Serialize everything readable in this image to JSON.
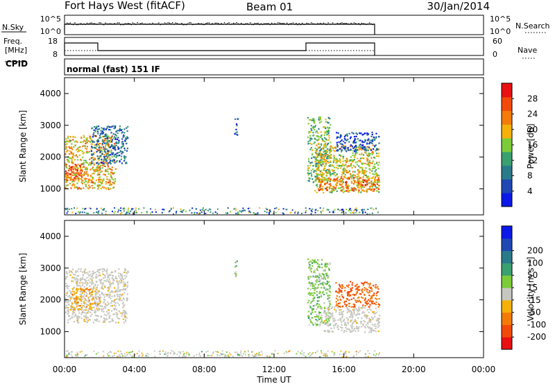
{
  "header": {
    "station": "Fort Hays West (fitACF)",
    "beam": "Beam 01",
    "date": "30/Jan/2014"
  },
  "top_panels": {
    "nsky_label": "N.Sky",
    "nsky_ticks_left": [
      "10^5",
      "10^0"
    ],
    "nsearch_ticks_right": [
      "10^5",
      "10^0"
    ],
    "nsearch_label": "N.Search",
    "freq_label": "Freq.",
    "freq_unit": "[MHz]",
    "freq_ticks": [
      "18",
      "8"
    ],
    "nave_ticks": [
      "60",
      "0"
    ],
    "nave_label": "Nave",
    "cpid_label": "CPID",
    "cpid_value": "normal (fast) 151 IF"
  },
  "colors": {
    "power_scale": [
      "#0b18e8",
      "#1f48b4",
      "#2a7b8a",
      "#3aa070",
      "#7ccc3a",
      "#f3b10a",
      "#f37b0a",
      "#f24a0a",
      "#e81010"
    ],
    "velocity_scale": [
      "#e81010",
      "#f24a0a",
      "#f37b0a",
      "#f3b10a",
      "#c7c7c2",
      "#7ccc3a",
      "#3aa070",
      "#2a7b8a",
      "#1f48b4",
      "#0b18e8"
    ],
    "ground_scatter": "#c7c7c2"
  },
  "chart_data": [
    {
      "type": "heatmap",
      "name": "power",
      "ylabel": "Slant Range [km]",
      "yticks": [
        "1000",
        "2000",
        "3000",
        "4000"
      ],
      "ylim": [
        180,
        4500
      ],
      "xlim": [
        0,
        24
      ],
      "colorbar_label": "Power [dB]",
      "colorbar_ticks": [
        "4",
        "8",
        "12",
        "16",
        "20",
        "24",
        "28"
      ],
      "colorbar_range": [
        0,
        32
      ],
      "regions": [
        {
          "t0": 0.0,
          "t1": 2.9,
          "r0": 1000,
          "r1": 2700,
          "value": 20
        },
        {
          "t0": 0.0,
          "t1": 1.0,
          "r0": 1300,
          "r1": 1800,
          "value": 26
        },
        {
          "t0": 1.5,
          "t1": 3.6,
          "r0": 1800,
          "r1": 3000,
          "value": 8
        },
        {
          "t0": 9.7,
          "t1": 9.9,
          "r0": 2700,
          "r1": 3250,
          "value": 6
        },
        {
          "t0": 13.9,
          "t1": 15.2,
          "r0": 1200,
          "r1": 3300,
          "value": 14
        },
        {
          "t0": 14.3,
          "t1": 18.0,
          "r0": 900,
          "r1": 2400,
          "value": 18
        },
        {
          "t0": 14.5,
          "t1": 18.0,
          "r0": 950,
          "r1": 1400,
          "value": 24
        },
        {
          "t0": 15.5,
          "t1": 18.0,
          "r0": 2200,
          "r1": 2800,
          "value": 6
        }
      ]
    },
    {
      "type": "heatmap",
      "name": "velocity",
      "ylabel": "Slant Range [km]",
      "yticks": [
        "1000",
        "2000",
        "3000",
        "4000"
      ],
      "ylim": [
        180,
        4500
      ],
      "xlim": [
        0,
        24
      ],
      "xticks": [
        "00:00",
        "04:00",
        "08:00",
        "12:00",
        "16:00",
        "20:00",
        "00:00"
      ],
      "xlabel": "Time UT",
      "colorbar_label": "Velocity [m s⁻¹]",
      "colorbar_ticks": [
        "-200",
        "-100",
        "-50",
        "-15",
        "15",
        "50",
        "100",
        "200"
      ],
      "regions": [
        {
          "t0": 0.0,
          "t1": 3.6,
          "r0": 1300,
          "r1": 3000,
          "value": "ground"
        },
        {
          "t0": 0.3,
          "t1": 2.0,
          "r0": 1700,
          "r1": 2400,
          "value": -30
        },
        {
          "t0": 9.7,
          "t1": 9.9,
          "r0": 2700,
          "r1": 3250,
          "value": 30
        },
        {
          "t0": 13.9,
          "t1": 15.2,
          "r0": 1200,
          "r1": 3300,
          "value": 30
        },
        {
          "t0": 14.8,
          "t1": 18.0,
          "r0": 1000,
          "r1": 1800,
          "value": "ground"
        },
        {
          "t0": 15.5,
          "t1": 18.0,
          "r0": 1800,
          "r1": 2600,
          "value": -100
        }
      ]
    }
  ]
}
